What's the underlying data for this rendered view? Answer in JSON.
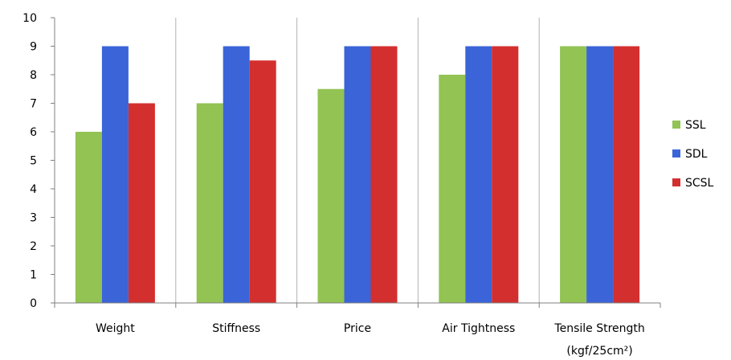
{
  "chart_data": {
    "type": "bar",
    "categories": [
      "Weight",
      "Stiffness",
      "Price",
      "Air Tightness",
      "Tensile Strength"
    ],
    "category_sublabels": [
      "",
      "",
      "",
      "",
      "(kgf/25cm²)"
    ],
    "series": [
      {
        "name": "SSL",
        "color": "#92c353",
        "values": [
          6,
          7,
          7.5,
          8,
          9
        ]
      },
      {
        "name": "SDL",
        "color": "#3a64d8",
        "values": [
          9,
          9,
          9,
          9,
          9
        ]
      },
      {
        "name": "SCSL",
        "color": "#d32f2f",
        "values": [
          7,
          8.5,
          9,
          9,
          9
        ]
      }
    ],
    "ylim": [
      0,
      10
    ],
    "yticks": [
      "0",
      "1",
      "2",
      "3",
      "4",
      "5",
      "6",
      "7",
      "8",
      "9",
      "10"
    ],
    "grid": false,
    "category_separators": true,
    "legend_position": "right"
  }
}
